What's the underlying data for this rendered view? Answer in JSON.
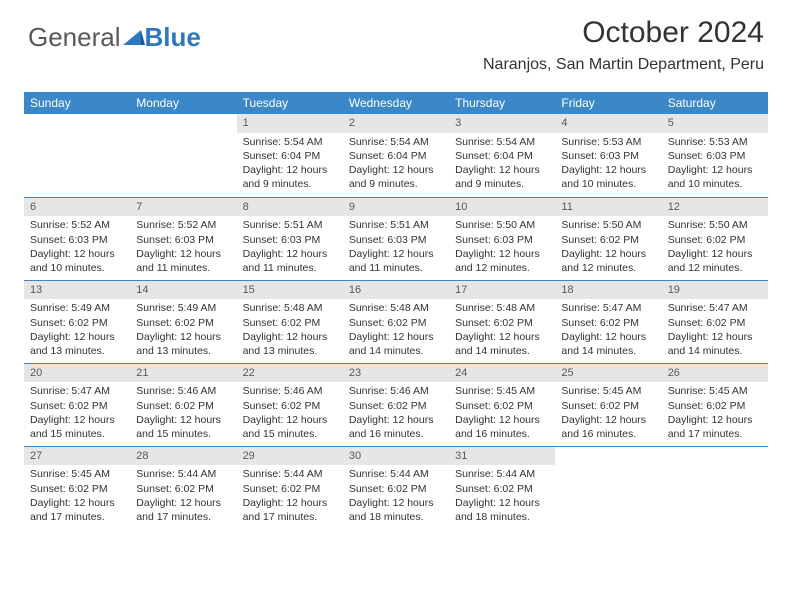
{
  "brand": {
    "part1": "General",
    "part2": "Blue"
  },
  "header": {
    "title": "October 2024",
    "location": "Naranjos, San Martin Department, Peru"
  },
  "colors": {
    "header_band": "#3b87c8",
    "daynum_bg": "#e6e6e6",
    "text": "#333333",
    "logo_blue": "#2f78bd",
    "logo_gray": "#595959"
  },
  "calendar": {
    "day_headers": [
      "Sunday",
      "Monday",
      "Tuesday",
      "Wednesday",
      "Thursday",
      "Friday",
      "Saturday"
    ],
    "weeks": [
      [
        {
          "num": "",
          "sunrise": "",
          "sunset": "",
          "daylight": ""
        },
        {
          "num": "",
          "sunrise": "",
          "sunset": "",
          "daylight": ""
        },
        {
          "num": "1",
          "sunrise": "Sunrise: 5:54 AM",
          "sunset": "Sunset: 6:04 PM",
          "daylight": "Daylight: 12 hours and 9 minutes."
        },
        {
          "num": "2",
          "sunrise": "Sunrise: 5:54 AM",
          "sunset": "Sunset: 6:04 PM",
          "daylight": "Daylight: 12 hours and 9 minutes."
        },
        {
          "num": "3",
          "sunrise": "Sunrise: 5:54 AM",
          "sunset": "Sunset: 6:04 PM",
          "daylight": "Daylight: 12 hours and 9 minutes."
        },
        {
          "num": "4",
          "sunrise": "Sunrise: 5:53 AM",
          "sunset": "Sunset: 6:03 PM",
          "daylight": "Daylight: 12 hours and 10 minutes."
        },
        {
          "num": "5",
          "sunrise": "Sunrise: 5:53 AM",
          "sunset": "Sunset: 6:03 PM",
          "daylight": "Daylight: 12 hours and 10 minutes."
        }
      ],
      [
        {
          "num": "6",
          "sunrise": "Sunrise: 5:52 AM",
          "sunset": "Sunset: 6:03 PM",
          "daylight": "Daylight: 12 hours and 10 minutes."
        },
        {
          "num": "7",
          "sunrise": "Sunrise: 5:52 AM",
          "sunset": "Sunset: 6:03 PM",
          "daylight": "Daylight: 12 hours and 11 minutes."
        },
        {
          "num": "8",
          "sunrise": "Sunrise: 5:51 AM",
          "sunset": "Sunset: 6:03 PM",
          "daylight": "Daylight: 12 hours and 11 minutes."
        },
        {
          "num": "9",
          "sunrise": "Sunrise: 5:51 AM",
          "sunset": "Sunset: 6:03 PM",
          "daylight": "Daylight: 12 hours and 11 minutes."
        },
        {
          "num": "10",
          "sunrise": "Sunrise: 5:50 AM",
          "sunset": "Sunset: 6:03 PM",
          "daylight": "Daylight: 12 hours and 12 minutes."
        },
        {
          "num": "11",
          "sunrise": "Sunrise: 5:50 AM",
          "sunset": "Sunset: 6:02 PM",
          "daylight": "Daylight: 12 hours and 12 minutes."
        },
        {
          "num": "12",
          "sunrise": "Sunrise: 5:50 AM",
          "sunset": "Sunset: 6:02 PM",
          "daylight": "Daylight: 12 hours and 12 minutes."
        }
      ],
      [
        {
          "num": "13",
          "sunrise": "Sunrise: 5:49 AM",
          "sunset": "Sunset: 6:02 PM",
          "daylight": "Daylight: 12 hours and 13 minutes."
        },
        {
          "num": "14",
          "sunrise": "Sunrise: 5:49 AM",
          "sunset": "Sunset: 6:02 PM",
          "daylight": "Daylight: 12 hours and 13 minutes."
        },
        {
          "num": "15",
          "sunrise": "Sunrise: 5:48 AM",
          "sunset": "Sunset: 6:02 PM",
          "daylight": "Daylight: 12 hours and 13 minutes."
        },
        {
          "num": "16",
          "sunrise": "Sunrise: 5:48 AM",
          "sunset": "Sunset: 6:02 PM",
          "daylight": "Daylight: 12 hours and 14 minutes."
        },
        {
          "num": "17",
          "sunrise": "Sunrise: 5:48 AM",
          "sunset": "Sunset: 6:02 PM",
          "daylight": "Daylight: 12 hours and 14 minutes."
        },
        {
          "num": "18",
          "sunrise": "Sunrise: 5:47 AM",
          "sunset": "Sunset: 6:02 PM",
          "daylight": "Daylight: 12 hours and 14 minutes."
        },
        {
          "num": "19",
          "sunrise": "Sunrise: 5:47 AM",
          "sunset": "Sunset: 6:02 PM",
          "daylight": "Daylight: 12 hours and 14 minutes."
        }
      ],
      [
        {
          "num": "20",
          "sunrise": "Sunrise: 5:47 AM",
          "sunset": "Sunset: 6:02 PM",
          "daylight": "Daylight: 12 hours and 15 minutes."
        },
        {
          "num": "21",
          "sunrise": "Sunrise: 5:46 AM",
          "sunset": "Sunset: 6:02 PM",
          "daylight": "Daylight: 12 hours and 15 minutes."
        },
        {
          "num": "22",
          "sunrise": "Sunrise: 5:46 AM",
          "sunset": "Sunset: 6:02 PM",
          "daylight": "Daylight: 12 hours and 15 minutes."
        },
        {
          "num": "23",
          "sunrise": "Sunrise: 5:46 AM",
          "sunset": "Sunset: 6:02 PM",
          "daylight": "Daylight: 12 hours and 16 minutes."
        },
        {
          "num": "24",
          "sunrise": "Sunrise: 5:45 AM",
          "sunset": "Sunset: 6:02 PM",
          "daylight": "Daylight: 12 hours and 16 minutes."
        },
        {
          "num": "25",
          "sunrise": "Sunrise: 5:45 AM",
          "sunset": "Sunset: 6:02 PM",
          "daylight": "Daylight: 12 hours and 16 minutes."
        },
        {
          "num": "26",
          "sunrise": "Sunrise: 5:45 AM",
          "sunset": "Sunset: 6:02 PM",
          "daylight": "Daylight: 12 hours and 17 minutes."
        }
      ],
      [
        {
          "num": "27",
          "sunrise": "Sunrise: 5:45 AM",
          "sunset": "Sunset: 6:02 PM",
          "daylight": "Daylight: 12 hours and 17 minutes."
        },
        {
          "num": "28",
          "sunrise": "Sunrise: 5:44 AM",
          "sunset": "Sunset: 6:02 PM",
          "daylight": "Daylight: 12 hours and 17 minutes."
        },
        {
          "num": "29",
          "sunrise": "Sunrise: 5:44 AM",
          "sunset": "Sunset: 6:02 PM",
          "daylight": "Daylight: 12 hours and 17 minutes."
        },
        {
          "num": "30",
          "sunrise": "Sunrise: 5:44 AM",
          "sunset": "Sunset: 6:02 PM",
          "daylight": "Daylight: 12 hours and 18 minutes."
        },
        {
          "num": "31",
          "sunrise": "Sunrise: 5:44 AM",
          "sunset": "Sunset: 6:02 PM",
          "daylight": "Daylight: 12 hours and 18 minutes."
        },
        {
          "num": "",
          "sunrise": "",
          "sunset": "",
          "daylight": ""
        },
        {
          "num": "",
          "sunrise": "",
          "sunset": "",
          "daylight": ""
        }
      ]
    ]
  }
}
